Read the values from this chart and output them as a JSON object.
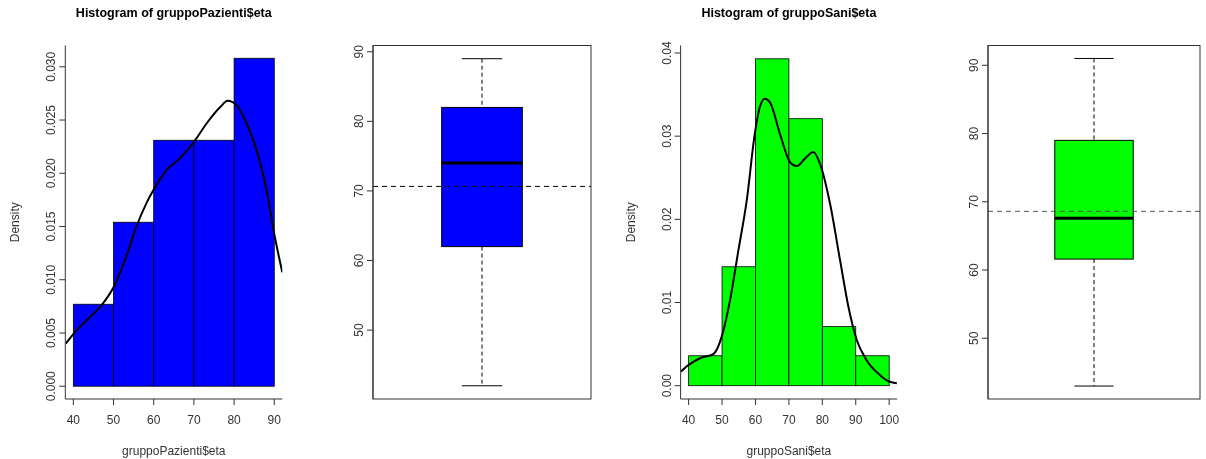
{
  "chart_data": [
    {
      "type": "histogram",
      "title": "Histogram of gruppoPazienti$eta",
      "xlabel": "gruppoPazienti$eta",
      "ylabel": "Density",
      "bins": [
        40,
        50,
        60,
        70,
        80,
        90
      ],
      "values": [
        0.0077,
        0.0154,
        0.0231,
        0.0231,
        0.0308
      ],
      "color": "#0000ff",
      "series": [
        {
          "type": "line",
          "color": "#000000",
          "x": [
            38.1,
            40,
            43.3,
            47,
            50,
            53.2,
            55.7,
            58.2,
            59.9,
            63.2,
            66.5,
            70.1,
            73.2,
            76.5,
            78.4,
            80.6,
            83.1,
            85.6,
            88.1,
            90,
            92
          ],
          "values": [
            0.004,
            0.0049,
            0.0062,
            0.0076,
            0.0093,
            0.0122,
            0.015,
            0.0172,
            0.0184,
            0.0203,
            0.0214,
            0.023,
            0.0247,
            0.0262,
            0.0268,
            0.0264,
            0.0247,
            0.0222,
            0.0184,
            0.0143,
            0.0107
          ]
        }
      ],
      "xlim": [
        38,
        92
      ],
      "ylim": [
        -0.0012,
        0.032
      ],
      "xticks": [
        40,
        50,
        60,
        70,
        80,
        90
      ],
      "yticks": [
        {
          "value": 0,
          "label": "0.000"
        },
        {
          "value": 0.005,
          "label": "0.005"
        },
        {
          "value": 0.01,
          "label": "0.010"
        },
        {
          "value": 0.015,
          "label": "0.015"
        },
        {
          "value": 0.02,
          "label": "0.020"
        },
        {
          "value": 0.025,
          "label": "0.025"
        },
        {
          "value": 0.03,
          "label": "0.030"
        }
      ]
    },
    {
      "type": "box",
      "categories": [
        null
      ],
      "color": "#0000ff",
      "boxes": [
        {
          "low": 42,
          "q1": 62,
          "median": 74,
          "q3": 82,
          "high": 89
        }
      ],
      "ref_lines": [
        {
          "axis": "y",
          "value": 70.65,
          "line_style": "dashed",
          "color": "#000000"
        }
      ],
      "ylim": [
        40.1,
        90.9
      ],
      "yticks": [
        50,
        60,
        70,
        80,
        90
      ],
      "tick_labels": "y"
    },
    {
      "type": "histogram",
      "title": "Histogram of gruppoSani$eta",
      "xlabel": "gruppoSani$eta",
      "ylabel": "Density",
      "bins": [
        40,
        50,
        60,
        70,
        80,
        90,
        100
      ],
      "values": [
        0.0036,
        0.0143,
        0.0393,
        0.0321,
        0.0071,
        0.0036
      ],
      "color": "#00ff00",
      "series": [
        {
          "type": "line",
          "color": "#000000",
          "x": [
            37.7,
            40,
            43.4,
            47.4,
            49.9,
            52.4,
            54.9,
            57.4,
            59.8,
            61.3,
            62.8,
            64.3,
            67.3,
            70.3,
            72.3,
            74.8,
            77.3,
            79.3,
            82.3,
            85.3,
            87.8,
            90.3,
            93.2,
            97.2,
            100,
            102.3
          ],
          "values": [
            0.0017,
            0.0025,
            0.0033,
            0.0038,
            0.0059,
            0.0103,
            0.0163,
            0.0223,
            0.0303,
            0.0335,
            0.0345,
            0.0341,
            0.0303,
            0.0269,
            0.0264,
            0.0273,
            0.0281,
            0.0267,
            0.0219,
            0.0151,
            0.0095,
            0.0055,
            0.0031,
            0.0013,
            0.0005,
            0.0003
          ]
        }
      ],
      "xlim": [
        37.6,
        102.4
      ],
      "ylim": [
        -0.0016,
        0.0409
      ],
      "xticks": [
        40,
        50,
        60,
        70,
        80,
        90,
        100
      ],
      "yticks": [
        {
          "value": 0,
          "label": "0.00"
        },
        {
          "value": 0.01,
          "label": "0.01"
        },
        {
          "value": 0.02,
          "label": "0.02"
        },
        {
          "value": 0.03,
          "label": "0.03"
        },
        {
          "value": 0.04,
          "label": "0.04"
        }
      ]
    },
    {
      "type": "box",
      "categories": [
        null
      ],
      "color": "#00ff00",
      "boxes": [
        {
          "low": 43,
          "q1": 61.6,
          "median": 67.6,
          "q3": 79,
          "high": 91
        }
      ],
      "ref_lines": [
        {
          "axis": "y",
          "value": 68.6,
          "line_style": "dashed",
          "color": "#555555"
        }
      ],
      "ylim": [
        41.1,
        92.9
      ],
      "yticks": [
        50,
        60,
        70,
        80,
        90
      ],
      "tick_labels": "y"
    }
  ]
}
